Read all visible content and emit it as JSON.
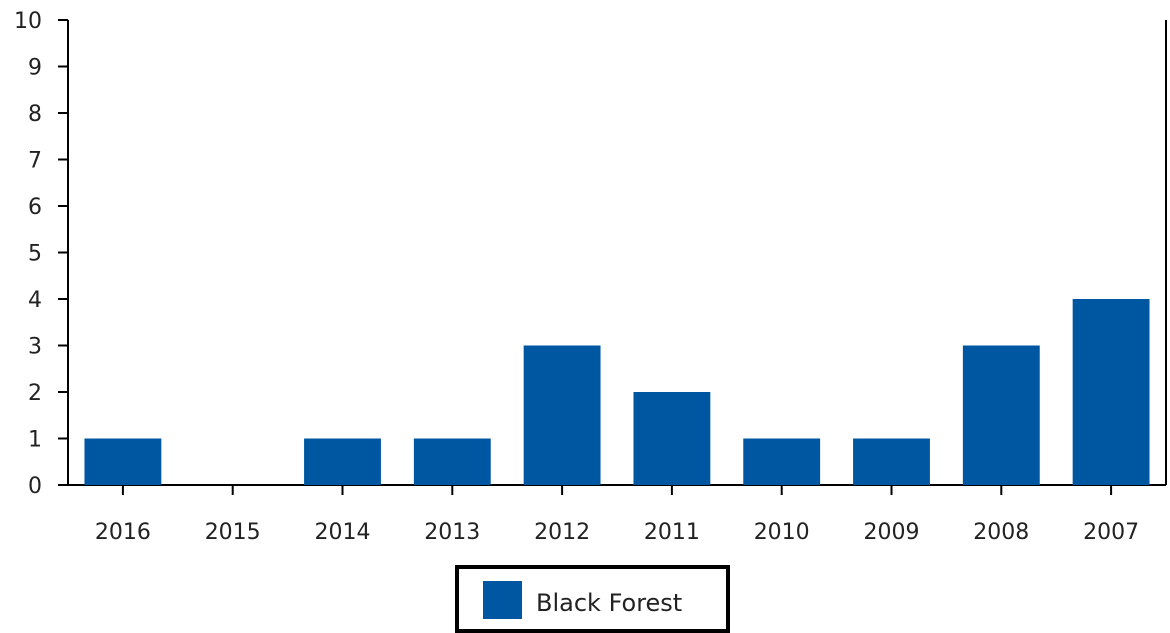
{
  "chart_data": {
    "type": "bar",
    "categories": [
      "2016",
      "2015",
      "2014",
      "2013",
      "2012",
      "2011",
      "2010",
      "2009",
      "2008",
      "2007"
    ],
    "series": [
      {
        "name": "Black Forest",
        "values": [
          1,
          0,
          1,
          1,
          3,
          2,
          1,
          1,
          3,
          4
        ],
        "color": "#0057a1"
      }
    ],
    "ylim": [
      0,
      10
    ],
    "yticks": [
      "0",
      "1",
      "2",
      "3",
      "4",
      "5",
      "6",
      "7",
      "8",
      "9",
      "10"
    ],
    "legend_position": "bottom-center",
    "grid": false
  }
}
